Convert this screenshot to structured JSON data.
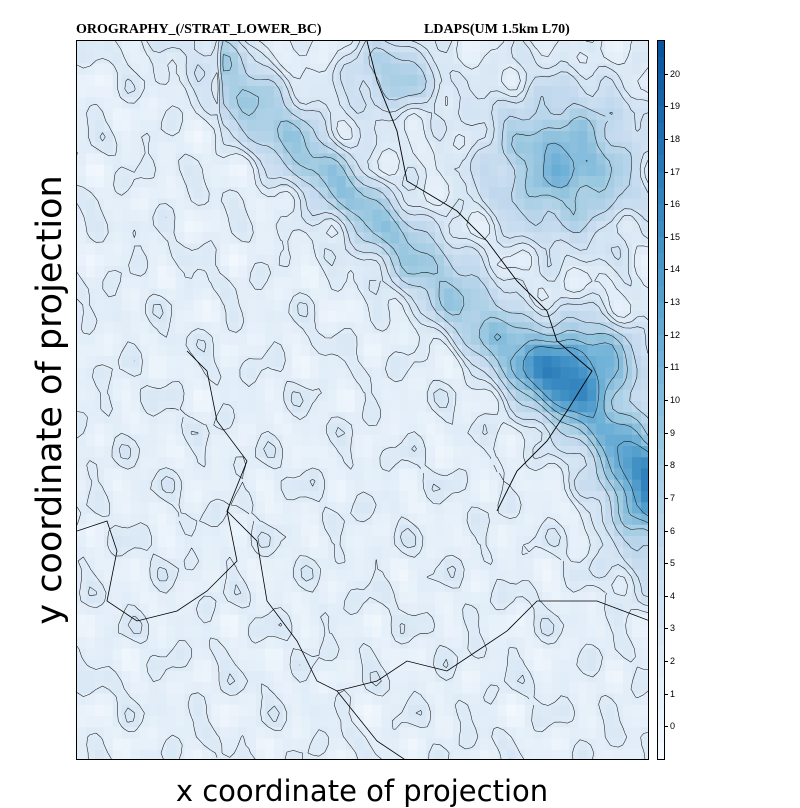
{
  "chart_data": {
    "type": "heatmap",
    "title_left": "OROGRAPHY_(/STRAT_LOWER_BC)",
    "title_right": "LDAPS(UM 1.5km L70)",
    "xlabel": "x coordinate of projection",
    "ylabel": "y coordinate of projection",
    "colorbar": {
      "ticks": [
        0,
        1,
        2,
        3,
        4,
        5,
        6,
        7,
        8,
        9,
        10,
        11,
        12,
        13,
        14,
        15,
        16,
        17,
        18,
        19,
        20
      ],
      "range": [
        -1,
        21
      ],
      "colors": [
        "#f7fbff",
        "#deebf7",
        "#c6dbef",
        "#9ecae1",
        "#6baed6",
        "#4292c6",
        "#2171b5",
        "#08519c"
      ]
    }
  }
}
